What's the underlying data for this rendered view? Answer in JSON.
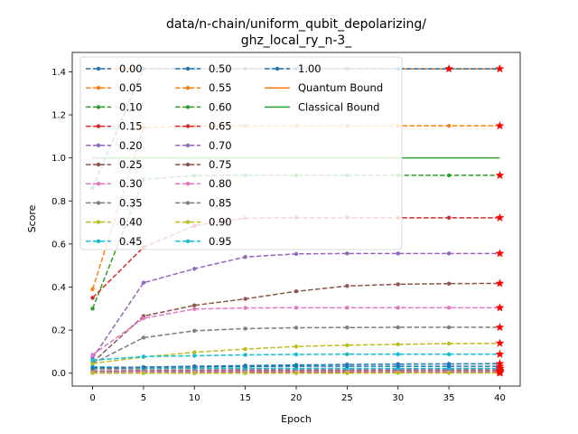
{
  "chart_data": {
    "type": "line",
    "title_line1": "data/n-chain/uniform_qubit_depolarizing/",
    "title_line2": "ghz_local_ry_n-3_",
    "xlabel": "Epoch",
    "ylabel": "Score",
    "xlim": [
      -2,
      42
    ],
    "ylim": [
      -0.06,
      1.49
    ],
    "xticks": [
      0,
      5,
      10,
      15,
      20,
      25,
      30,
      35,
      40
    ],
    "yticks": [
      0.0,
      0.2,
      0.4,
      0.6,
      0.8,
      1.0,
      1.2,
      1.4
    ],
    "ytick_labels": [
      "0.0",
      "0.2",
      "0.4",
      "0.6",
      "0.8",
      "1.0",
      "1.2",
      "1.4"
    ],
    "x": [
      0,
      5,
      10,
      15,
      20,
      25,
      30,
      35,
      40
    ],
    "legend_columns": 3,
    "legend_position": "upper-left",
    "series": [
      {
        "name": "0.00",
        "color": "#1f77b4",
        "values": [
          0.86,
          1.414,
          1.414,
          1.414,
          1.414,
          1.414,
          1.414,
          1.414,
          1.414
        ]
      },
      {
        "name": "0.05",
        "color": "#ff7f0e",
        "values": [
          0.39,
          1.14,
          1.148,
          1.149,
          1.149,
          1.149,
          1.149,
          1.149,
          1.149
        ]
      },
      {
        "name": "0.10",
        "color": "#2ca02c",
        "values": [
          0.3,
          0.9,
          0.918,
          0.919,
          0.919,
          0.919,
          0.919,
          0.919,
          0.919
        ]
      },
      {
        "name": "0.15",
        "color": "#d62728",
        "values": [
          0.35,
          0.585,
          0.685,
          0.72,
          0.722,
          0.722,
          0.722,
          0.722,
          0.722
        ]
      },
      {
        "name": "0.20",
        "color": "#9467bd",
        "values": [
          0.07,
          0.42,
          0.485,
          0.54,
          0.554,
          0.556,
          0.556,
          0.556,
          0.556
        ]
      },
      {
        "name": "0.25",
        "color": "#8c564b",
        "values": [
          0.05,
          0.265,
          0.315,
          0.345,
          0.38,
          0.405,
          0.413,
          0.416,
          0.417
        ]
      },
      {
        "name": "0.30",
        "color": "#e377c2",
        "values": [
          0.085,
          0.255,
          0.298,
          0.303,
          0.304,
          0.304,
          0.304,
          0.304,
          0.304
        ]
      },
      {
        "name": "0.35",
        "color": "#7f7f7f",
        "values": [
          0.045,
          0.165,
          0.197,
          0.207,
          0.211,
          0.212,
          0.213,
          0.213,
          0.213
        ]
      },
      {
        "name": "0.40",
        "color": "#bcbd22",
        "values": [
          0.045,
          0.075,
          0.097,
          0.112,
          0.124,
          0.13,
          0.134,
          0.137,
          0.139
        ]
      },
      {
        "name": "0.45",
        "color": "#17becf",
        "values": [
          0.06,
          0.077,
          0.081,
          0.085,
          0.087,
          0.088,
          0.088,
          0.088,
          0.088
        ]
      },
      {
        "name": "0.50",
        "color": "#1f77b4",
        "values": [
          0.02,
          0.028,
          0.032,
          0.035,
          0.038,
          0.04,
          0.042,
          0.043,
          0.044
        ]
      },
      {
        "name": "0.55",
        "color": "#ff7f0e",
        "values": [
          0.003,
          0.003,
          0.004,
          0.004,
          0.005,
          0.005,
          0.005,
          0.005,
          0.005
        ]
      },
      {
        "name": "0.60",
        "color": "#2ca02c",
        "values": [
          0.002,
          0.003,
          0.003,
          0.004,
          0.004,
          0.004,
          0.004,
          0.004,
          0.004
        ]
      },
      {
        "name": "0.65",
        "color": "#d62728",
        "values": [
          0.001,
          0.001,
          0.001,
          0.002,
          0.002,
          0.002,
          0.002,
          0.002,
          0.002
        ]
      },
      {
        "name": "0.70",
        "color": "#9467bd",
        "values": [
          0.01,
          0.012,
          0.013,
          0.014,
          0.014,
          0.014,
          0.014,
          0.014,
          0.014
        ]
      },
      {
        "name": "0.75",
        "color": "#8c564b",
        "values": [
          0.008,
          0.01,
          0.011,
          0.011,
          0.012,
          0.012,
          0.012,
          0.012,
          0.012
        ]
      },
      {
        "name": "0.80",
        "color": "#e377c2",
        "values": [
          0.005,
          0.007,
          0.008,
          0.009,
          0.009,
          0.009,
          0.009,
          0.009,
          0.009
        ]
      },
      {
        "name": "0.85",
        "color": "#7f7f7f",
        "values": [
          0.02,
          0.02,
          0.021,
          0.021,
          0.021,
          0.021,
          0.021,
          0.021,
          0.021
        ]
      },
      {
        "name": "0.90",
        "color": "#bcbd22",
        "values": [
          0.001,
          0.0,
          0.0,
          0.0,
          0.0,
          0.0,
          0.001,
          0.001,
          0.001
        ]
      },
      {
        "name": "0.95",
        "color": "#17becf",
        "values": [
          0.03,
          0.025,
          0.024,
          0.023,
          0.022,
          0.022,
          0.022,
          0.022,
          0.022
        ]
      },
      {
        "name": "1.00",
        "color": "#1f77b4",
        "values": [
          0.025,
          0.028,
          0.03,
          0.031,
          0.032,
          0.032,
          0.032,
          0.032,
          0.032
        ]
      }
    ],
    "bounds": [
      {
        "name": "Quantum Bound",
        "color": "#ff7f0e",
        "value": 1.414
      },
      {
        "name": "Classical Bound",
        "color": "#2ca02c",
        "value": 1.0
      }
    ]
  }
}
